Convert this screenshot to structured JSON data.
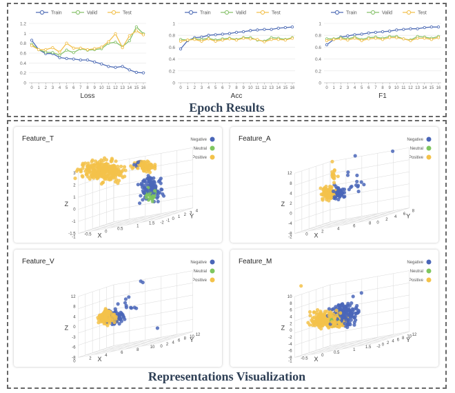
{
  "sections": {
    "epoch_title": "Epoch Results",
    "repr_title": "Representations Visualization"
  },
  "colors": {
    "train": "#4d6bb5",
    "valid": "#86c16a",
    "test": "#f2c04c",
    "negative": "#4a66b8",
    "neutral": "#7fc65f",
    "positive": "#f3c24a",
    "title": "#2f4056"
  },
  "chart_data": [
    {
      "type": "line",
      "title": "Loss",
      "xlabel": "Loss",
      "x": [
        0,
        1,
        2,
        3,
        4,
        5,
        6,
        7,
        8,
        9,
        10,
        11,
        12,
        13,
        14,
        15,
        16
      ],
      "ylim": [
        0,
        1.2
      ],
      "yticks": [
        "0",
        "0.2",
        "0.4",
        "0.6",
        "0.8",
        "1",
        "1.2"
      ],
      "ytick_values": [
        0,
        0.2,
        0.4,
        0.6,
        0.8,
        1.0,
        1.2
      ],
      "series": [
        {
          "name": "Train",
          "values": [
            0.86,
            0.67,
            0.59,
            0.59,
            0.51,
            0.49,
            0.48,
            0.46,
            0.46,
            0.42,
            0.38,
            0.33,
            0.31,
            0.33,
            0.26,
            0.21,
            0.2
          ]
        },
        {
          "name": "Valid",
          "values": [
            0.78,
            0.67,
            0.62,
            0.61,
            0.56,
            0.66,
            0.61,
            0.69,
            0.66,
            0.67,
            0.69,
            0.8,
            0.82,
            0.73,
            0.85,
            1.13,
            0.99
          ]
        },
        {
          "name": "Test",
          "values": [
            0.75,
            0.67,
            0.67,
            0.71,
            0.62,
            0.8,
            0.7,
            0.7,
            0.67,
            0.69,
            0.72,
            0.83,
            0.99,
            0.71,
            0.95,
            1.05,
            0.97
          ]
        }
      ]
    },
    {
      "type": "line",
      "title": "Acc",
      "xlabel": "Acc",
      "x": [
        0,
        1,
        2,
        3,
        4,
        5,
        6,
        7,
        8,
        9,
        10,
        11,
        12,
        13,
        14,
        15,
        16
      ],
      "ylim": [
        0,
        1
      ],
      "yticks": [
        "0",
        "0.2",
        "0.4",
        "0.6",
        "0.8",
        "1"
      ],
      "ytick_values": [
        0,
        0.2,
        0.4,
        0.6,
        0.8,
        1.0
      ],
      "series": [
        {
          "name": "Train",
          "values": [
            0.57,
            0.71,
            0.76,
            0.77,
            0.8,
            0.81,
            0.82,
            0.83,
            0.85,
            0.86,
            0.88,
            0.89,
            0.9,
            0.9,
            0.92,
            0.93,
            0.94
          ]
        },
        {
          "name": "Valid",
          "values": [
            0.73,
            0.72,
            0.74,
            0.73,
            0.75,
            0.72,
            0.74,
            0.75,
            0.73,
            0.76,
            0.76,
            0.72,
            0.7,
            0.76,
            0.75,
            0.73,
            0.76
          ]
        },
        {
          "name": "Test",
          "values": [
            0.7,
            0.72,
            0.73,
            0.7,
            0.74,
            0.7,
            0.72,
            0.74,
            0.72,
            0.75,
            0.74,
            0.73,
            0.69,
            0.73,
            0.73,
            0.72,
            0.75
          ]
        }
      ]
    },
    {
      "type": "line",
      "title": "F1",
      "xlabel": "F1",
      "x": [
        0,
        1,
        2,
        3,
        4,
        5,
        6,
        7,
        8,
        9,
        10,
        11,
        12,
        13,
        14,
        15,
        16
      ],
      "ylim": [
        0,
        1
      ],
      "yticks": [
        "0",
        "0.2",
        "0.4",
        "0.6",
        "0.8",
        "1"
      ],
      "ytick_values": [
        0,
        0.2,
        0.4,
        0.6,
        0.8,
        1.0
      ],
      "series": [
        {
          "name": "Train",
          "values": [
            0.64,
            0.73,
            0.77,
            0.79,
            0.81,
            0.82,
            0.84,
            0.85,
            0.86,
            0.87,
            0.89,
            0.9,
            0.91,
            0.91,
            0.93,
            0.94,
            0.94
          ]
        },
        {
          "name": "Valid",
          "values": [
            0.74,
            0.74,
            0.76,
            0.74,
            0.77,
            0.73,
            0.76,
            0.77,
            0.75,
            0.78,
            0.78,
            0.74,
            0.72,
            0.78,
            0.77,
            0.75,
            0.78
          ]
        },
        {
          "name": "Test",
          "values": [
            0.71,
            0.73,
            0.74,
            0.72,
            0.75,
            0.71,
            0.74,
            0.75,
            0.73,
            0.76,
            0.76,
            0.74,
            0.71,
            0.75,
            0.75,
            0.73,
            0.76
          ]
        }
      ]
    },
    {
      "type": "scatter",
      "title": "Feature_T",
      "legend": [
        "Negative",
        "Neutral",
        "Positive"
      ],
      "z_label": "Z",
      "x_label": "X",
      "y_label": "Y",
      "z_ticks": [
        "3",
        "2",
        "1",
        "0",
        "-1",
        "-1.5"
      ],
      "x_ticks": [
        "-1",
        "-0.5",
        "0",
        "0.5",
        "1",
        "1.5"
      ],
      "y_ticks": [
        "-2",
        "-1",
        "0",
        "1",
        "2",
        "3",
        "4"
      ]
    },
    {
      "type": "scatter",
      "title": "Feature_A",
      "legend": [
        "Negative",
        "Neutral",
        "Positive"
      ],
      "z_label": "Z",
      "x_label": "X",
      "y_label": "Y",
      "z_ticks": [
        "12",
        "8",
        "4",
        "2",
        "0",
        "-4",
        "-8"
      ],
      "x_ticks": [
        "-2",
        "0",
        "2",
        "4",
        "6",
        "8"
      ],
      "y_ticks": [
        "0",
        "2",
        "4",
        "6",
        "8"
      ]
    },
    {
      "type": "scatter",
      "title": "Feature_V",
      "legend": [
        "Negative",
        "Neutral",
        "Positive"
      ],
      "z_label": "Z",
      "x_label": "X",
      "y_label": "Y",
      "z_ticks": [
        "12",
        "8",
        "4",
        "0",
        "-3",
        "-6",
        "-8"
      ],
      "x_ticks": [
        "0",
        "2",
        "4",
        "6",
        "8",
        "10"
      ],
      "y_ticks": [
        "0",
        "2",
        "4",
        "6",
        "8",
        "10",
        "12"
      ]
    },
    {
      "type": "scatter",
      "title": "Feature_M",
      "legend": [
        "Negative",
        "Neutral",
        "Positive"
      ],
      "z_label": "Z",
      "x_label": "X",
      "y_label": "Y",
      "z_ticks": [
        "10",
        "8",
        "6",
        "4",
        "2",
        "0",
        "-2",
        "-4",
        "-6",
        "-8"
      ],
      "x_ticks": [
        "-1",
        "-0.5",
        "0",
        "0.5",
        "1",
        "1.5"
      ],
      "y_ticks": [
        "-2",
        "0",
        "2",
        "4",
        "6",
        "8",
        "10",
        "12"
      ]
    }
  ]
}
